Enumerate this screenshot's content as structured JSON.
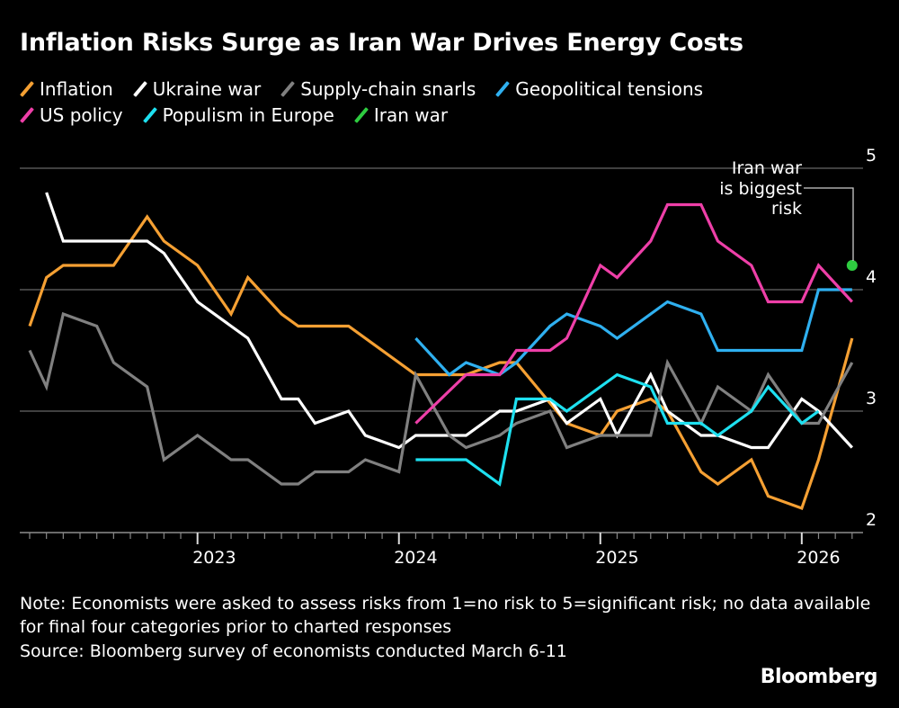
{
  "title": "Inflation Risks Surge as Iran War Drives Energy Costs",
  "legend": [
    {
      "label": "Inflation",
      "color": "#f5a033"
    },
    {
      "label": "Ukraine war",
      "color": "#ffffff"
    },
    {
      "label": "Supply-chain snarls",
      "color": "#808080"
    },
    {
      "label": "Geopolitical tensions",
      "color": "#2fb0f0"
    },
    {
      "label": "US policy",
      "color": "#ee3fa8"
    },
    {
      "label": "Populism in Europe",
      "color": "#1ee0f0"
    },
    {
      "label": "Iran war",
      "color": "#2ecc40"
    }
  ],
  "chart_data": {
    "type": "line",
    "title": "Inflation Risks Surge as Iran War Drives Energy Costs",
    "xlabel": "",
    "ylabel": "",
    "ylim": [
      2,
      5
    ],
    "yticks": [
      "2",
      "3",
      "4",
      "5"
    ],
    "xticks": [
      "2023",
      "2024",
      "2025",
      "2026"
    ],
    "grid": true,
    "legend_position": "top",
    "annotation": {
      "text_lines": [
        "Iran war",
        "is biggest",
        "risk"
      ],
      "series": "Iran war"
    },
    "series": [
      {
        "name": "Inflation",
        "color": "#f5a033",
        "points": [
          [
            "2022-02",
            3.7
          ],
          [
            "2022-03",
            4.1
          ],
          [
            "2022-04",
            4.2
          ],
          [
            "2022-07",
            4.2
          ],
          [
            "2022-09",
            4.6
          ],
          [
            "2022-10",
            4.4
          ],
          [
            "2022-12",
            4.2
          ],
          [
            "2023-02",
            3.8
          ],
          [
            "2023-03",
            4.1
          ],
          [
            "2023-05",
            3.8
          ],
          [
            "2023-06",
            3.7
          ],
          [
            "2023-09",
            3.7
          ],
          [
            "2024-01",
            3.3
          ],
          [
            "2024-04",
            3.3
          ],
          [
            "2024-06",
            3.4
          ],
          [
            "2024-07",
            3.4
          ],
          [
            "2024-10",
            2.9
          ],
          [
            "2024-12",
            2.8
          ],
          [
            "2025-01",
            3.0
          ],
          [
            "2025-03",
            3.1
          ],
          [
            "2025-04",
            3.0
          ],
          [
            "2025-06",
            2.5
          ],
          [
            "2025-07",
            2.4
          ],
          [
            "2025-09",
            2.6
          ],
          [
            "2025-10",
            2.3
          ],
          [
            "2025-12",
            2.2
          ],
          [
            "2026-01",
            2.6
          ],
          [
            "2026-03",
            3.6
          ]
        ]
      },
      {
        "name": "Ukraine war",
        "color": "#ffffff",
        "points": [
          [
            "2022-03",
            4.8
          ],
          [
            "2022-04",
            4.4
          ],
          [
            "2022-09",
            4.4
          ],
          [
            "2022-10",
            4.3
          ],
          [
            "2022-12",
            3.9
          ],
          [
            "2023-03",
            3.6
          ],
          [
            "2023-05",
            3.1
          ],
          [
            "2023-06",
            3.1
          ],
          [
            "2023-07",
            2.9
          ],
          [
            "2023-09",
            3.0
          ],
          [
            "2023-10",
            2.8
          ],
          [
            "2023-12",
            2.7
          ],
          [
            "2024-01",
            2.8
          ],
          [
            "2024-04",
            2.8
          ],
          [
            "2024-06",
            3.0
          ],
          [
            "2024-07",
            3.0
          ],
          [
            "2024-09",
            3.1
          ],
          [
            "2024-10",
            2.9
          ],
          [
            "2024-12",
            3.1
          ],
          [
            "2025-01",
            2.8
          ],
          [
            "2025-03",
            3.3
          ],
          [
            "2025-04",
            3.0
          ],
          [
            "2025-06",
            2.8
          ],
          [
            "2025-07",
            2.8
          ],
          [
            "2025-09",
            2.7
          ],
          [
            "2025-10",
            2.7
          ],
          [
            "2025-12",
            3.1
          ],
          [
            "2026-01",
            3.0
          ],
          [
            "2026-03",
            2.7
          ]
        ]
      },
      {
        "name": "Supply-chain snarls",
        "color": "#808080",
        "points": [
          [
            "2022-02",
            3.5
          ],
          [
            "2022-03",
            3.2
          ],
          [
            "2022-04",
            3.8
          ],
          [
            "2022-06",
            3.7
          ],
          [
            "2022-07",
            3.4
          ],
          [
            "2022-09",
            3.2
          ],
          [
            "2022-10",
            2.6
          ],
          [
            "2022-12",
            2.8
          ],
          [
            "2023-02",
            2.6
          ],
          [
            "2023-03",
            2.6
          ],
          [
            "2023-05",
            2.4
          ],
          [
            "2023-06",
            2.4
          ],
          [
            "2023-07",
            2.5
          ],
          [
            "2023-09",
            2.5
          ],
          [
            "2023-10",
            2.6
          ],
          [
            "2023-12",
            2.5
          ],
          [
            "2024-01",
            3.3
          ],
          [
            "2024-03",
            2.8
          ],
          [
            "2024-04",
            2.7
          ],
          [
            "2024-06",
            2.8
          ],
          [
            "2024-07",
            2.9
          ],
          [
            "2024-09",
            3.0
          ],
          [
            "2024-10",
            2.7
          ],
          [
            "2024-12",
            2.8
          ],
          [
            "2025-03",
            2.8
          ],
          [
            "2025-04",
            3.4
          ],
          [
            "2025-06",
            2.9
          ],
          [
            "2025-07",
            3.2
          ],
          [
            "2025-09",
            3.0
          ],
          [
            "2025-10",
            3.3
          ],
          [
            "2025-12",
            2.9
          ],
          [
            "2026-01",
            2.9
          ],
          [
            "2026-03",
            3.4
          ]
        ]
      },
      {
        "name": "Geopolitical tensions",
        "color": "#2fb0f0",
        "points": [
          [
            "2024-01",
            3.6
          ],
          [
            "2024-03",
            3.3
          ],
          [
            "2024-04",
            3.4
          ],
          [
            "2024-06",
            3.3
          ],
          [
            "2024-07",
            3.4
          ],
          [
            "2024-09",
            3.7
          ],
          [
            "2024-10",
            3.8
          ],
          [
            "2024-12",
            3.7
          ],
          [
            "2025-01",
            3.6
          ],
          [
            "2025-04",
            3.9
          ],
          [
            "2025-06",
            3.8
          ],
          [
            "2025-07",
            3.5
          ],
          [
            "2025-12",
            3.5
          ],
          [
            "2026-01",
            4.0
          ],
          [
            "2026-03",
            4.0
          ]
        ]
      },
      {
        "name": "US policy",
        "color": "#ee3fa8",
        "points": [
          [
            "2024-01",
            2.9
          ],
          [
            "2024-04",
            3.3
          ],
          [
            "2024-06",
            3.3
          ],
          [
            "2024-07",
            3.5
          ],
          [
            "2024-09",
            3.5
          ],
          [
            "2024-10",
            3.6
          ],
          [
            "2024-12",
            4.2
          ],
          [
            "2025-01",
            4.1
          ],
          [
            "2025-03",
            4.4
          ],
          [
            "2025-04",
            4.7
          ],
          [
            "2025-06",
            4.7
          ],
          [
            "2025-07",
            4.4
          ],
          [
            "2025-09",
            4.2
          ],
          [
            "2025-10",
            3.9
          ],
          [
            "2025-12",
            3.9
          ],
          [
            "2026-01",
            4.2
          ],
          [
            "2026-03",
            3.9
          ]
        ]
      },
      {
        "name": "Populism in Europe",
        "color": "#1ee0f0",
        "points": [
          [
            "2024-01",
            2.6
          ],
          [
            "2024-04",
            2.6
          ],
          [
            "2024-06",
            2.4
          ],
          [
            "2024-07",
            3.1
          ],
          [
            "2024-09",
            3.1
          ],
          [
            "2024-10",
            3.0
          ],
          [
            "2025-01",
            3.3
          ],
          [
            "2025-03",
            3.2
          ],
          [
            "2025-04",
            2.9
          ],
          [
            "2025-06",
            2.9
          ],
          [
            "2025-07",
            2.8
          ],
          [
            "2025-09",
            3.0
          ],
          [
            "2025-10",
            3.2
          ],
          [
            "2025-12",
            2.9
          ],
          [
            "2026-01",
            3.0
          ]
        ]
      },
      {
        "name": "Iran war",
        "color": "#2ecc40",
        "points": [
          [
            "2026-03",
            4.2
          ]
        ]
      }
    ]
  },
  "note": "Note: Economists were asked to assess risks from 1=no risk to 5=significant risk; no data available for final four categories prior to charted responses",
  "source": "Source: Bloomberg survey of economists conducted March 6-11",
  "logo": "Bloomberg"
}
